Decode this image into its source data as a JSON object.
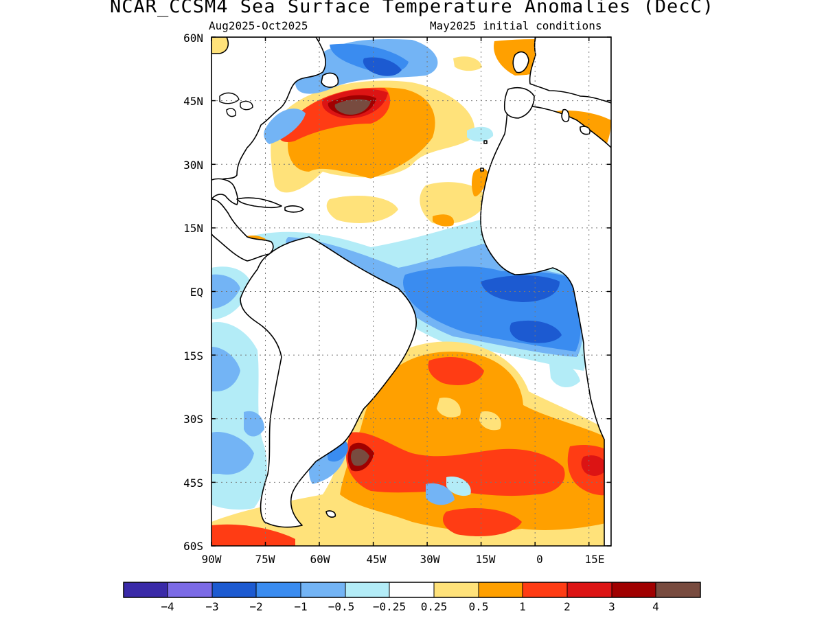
{
  "title": "NCAR_CCSM4 Sea Surface Temperature Anomalies (DecC)",
  "period": "Aug2025-Oct2025",
  "init": "May2025 initial conditions",
  "axes": {
    "lat_labels": [
      "60N",
      "45N",
      "30N",
      "15N",
      "EQ",
      "15S",
      "30S",
      "45S",
      "60S"
    ],
    "lon_labels": [
      "90W",
      "75W",
      "60W",
      "45W",
      "30W",
      "15W",
      "0",
      "15E"
    ]
  },
  "colorbar": {
    "colors": [
      "#3a2aa8",
      "#7b6ae6",
      "#1c5ad1",
      "#3a8cf0",
      "#73b4f5",
      "#b3ecf7",
      "#ffffff",
      "#ffe27a",
      "#ffa000",
      "#ff3c14",
      "#dc1414",
      "#a00000",
      "#784b3f"
    ],
    "labels": [
      "−4",
      "−3",
      "−2",
      "−1",
      "−0.5",
      "−0.25",
      "0.25",
      "0.5",
      "1",
      "2",
      "3",
      "4"
    ]
  },
  "palette": {
    "land": "#ffffff",
    "ocean_neutral": "#ffffff",
    "coast": "#000000"
  }
}
